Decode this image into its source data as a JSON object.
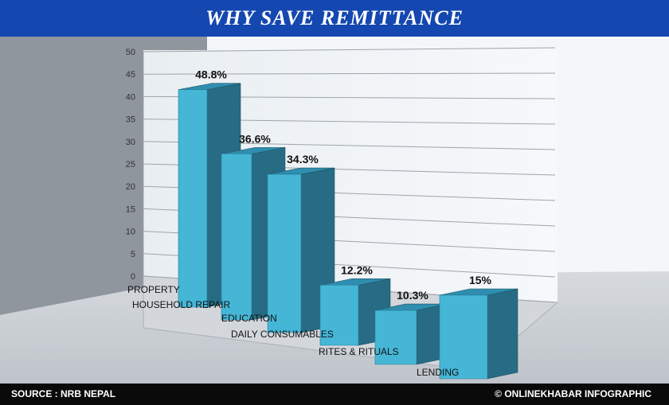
{
  "header": {
    "title": "WHY SAVE REMITTANCE"
  },
  "footer": {
    "source": "SOURCE : NRB NEPAL",
    "credit": "© ONLINEKHABAR INFOGRAPHIC"
  },
  "colors": {
    "header_bg": "#1447b0",
    "bar_front": "#45b6d6",
    "bar_side": "#276b84",
    "bar_top": "#2f8eaf",
    "footer_bg": "#0a0a0a"
  },
  "chart_data": {
    "type": "bar",
    "title": "",
    "xlabel": "",
    "ylabel": "",
    "ylim": [
      0,
      50
    ],
    "yticks": [
      "0",
      "5",
      "10",
      "15",
      "20",
      "25",
      "30",
      "35",
      "40",
      "45",
      "50"
    ],
    "grid": true,
    "categories": [
      "PROPERTY",
      "HOUSEHOLD REPAIR",
      "EDUCATION",
      "DAILY CONSUMABLES",
      "RITES & RITUALS",
      "LENDING"
    ],
    "values": [
      48.8,
      36.6,
      34.3,
      12.2,
      10.3,
      15
    ],
    "data_labels": [
      "48.8%",
      "36.6%",
      "34.3%",
      "12.2%",
      "10.3%",
      "15%"
    ]
  }
}
